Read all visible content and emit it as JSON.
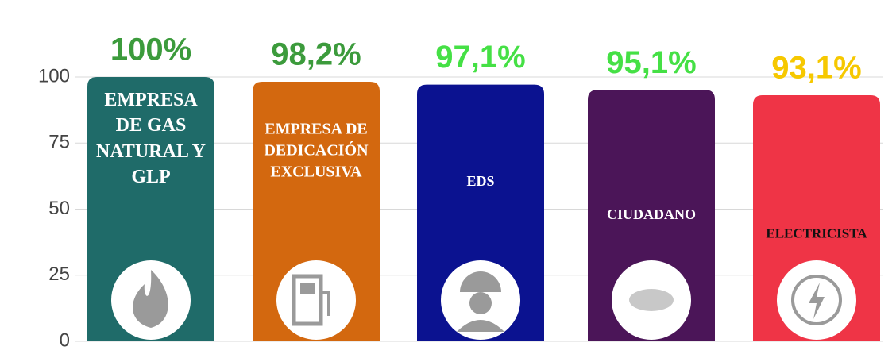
{
  "chart_data": {
    "type": "bar",
    "categories": [
      "EMPRESA DE GAS NATURAL Y GLP",
      "EMPRESA DE DEDICACIÓN EXCLUSIVA",
      "EDS",
      "CIUDADANO",
      "ELECTRICISTA"
    ],
    "values": [
      100,
      98.2,
      97.1,
      95.1,
      93.1
    ],
    "value_labels": [
      "100%",
      "98,2%",
      "97,1%",
      "95,1%",
      "93,1%"
    ],
    "colors": [
      "#1f6b69",
      "#d3680f",
      "#0b1290",
      "#4b1558",
      "#ef3446"
    ],
    "value_label_colors": [
      "#3c9b3c",
      "#3c9b3c",
      "#45e045",
      "#45e045",
      "#f6c800"
    ],
    "category_label_colors": [
      "#ffffff",
      "#ffffff",
      "#ffffff",
      "#ffffff",
      "#111111"
    ],
    "ylim": [
      0,
      100
    ],
    "yticks": [
      0,
      25,
      50,
      75,
      100
    ],
    "grid": true
  }
}
